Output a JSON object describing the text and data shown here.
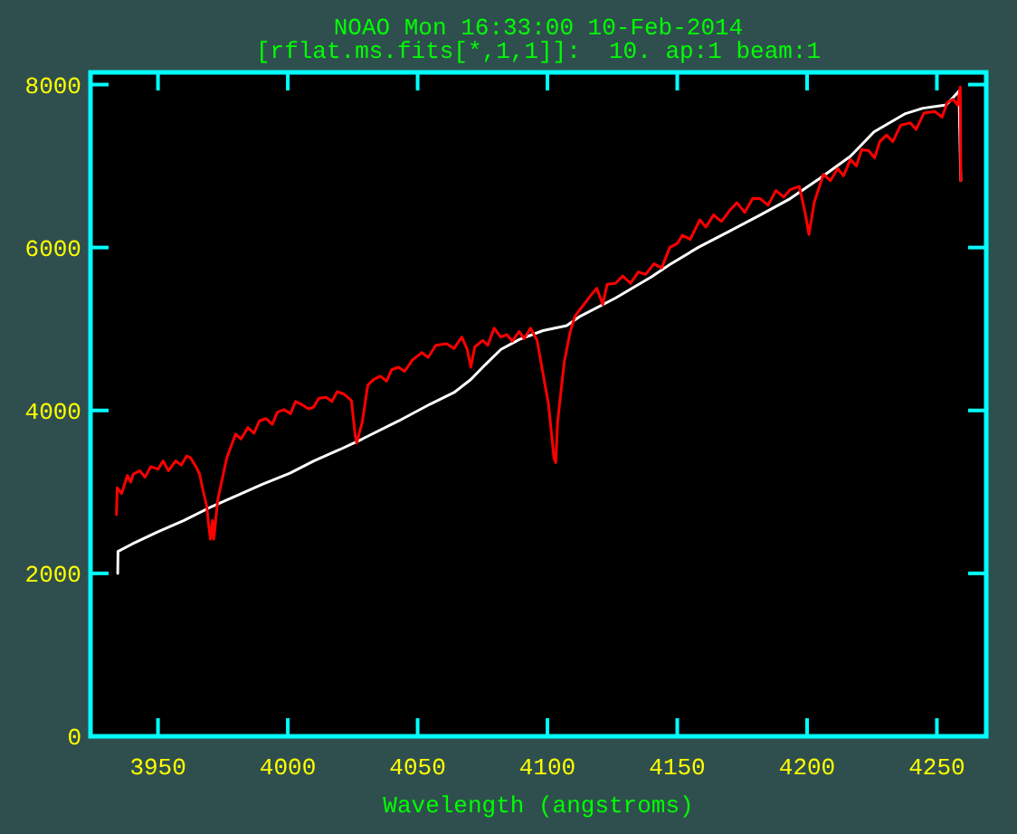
{
  "chart_data": {
    "type": "line",
    "title": "NOAO Mon 16:33:00 10-Feb-2014",
    "subtitle": "[rflat.ms.fits[*,1,1]]:  10. ap:1 beam:1",
    "xlabel": "Wavelength (angstroms)",
    "xlim": [
      3924,
      4269
    ],
    "xticks": [
      3950,
      4000,
      4050,
      4100,
      4150,
      4200,
      4250
    ],
    "ylim": [
      0,
      8150
    ],
    "yticks": [
      0,
      2000,
      4000,
      6000,
      8000
    ],
    "line_style": "solid",
    "series": [
      {
        "color": "#ffffff",
        "x": [
          3934.5,
          3934.6,
          3940,
          3950,
          3960,
          3970.7,
          3980,
          3990,
          4000.8,
          4010,
          4020,
          4028.7,
          4042.6,
          4055,
          4064,
          4070.5,
          4076,
          4082.1,
          4089.1,
          4098.3,
          4107.4,
          4112.3,
          4126.2,
          4140.1,
          4147.1,
          4158,
          4170.1,
          4182,
          4193.5,
          4205,
          4216.7,
          4225.8,
          4237.6,
          4244.6,
          4253.6,
          4258.5,
          4259.2
        ],
        "values": [
          2000,
          2270,
          2360,
          2510,
          2650,
          2820,
          2950,
          3090,
          3230,
          3380,
          3520,
          3650,
          3870,
          4080,
          4220,
          4380,
          4560,
          4750,
          4870,
          4980,
          5040,
          5150,
          5380,
          5640,
          5790,
          6000,
          6200,
          6400,
          6600,
          6850,
          7120,
          7420,
          7640,
          7710,
          7750,
          7920,
          6820
        ]
      },
      {
        "color": "#ff0000",
        "x": [
          3934,
          3934.3,
          3936,
          3938.2,
          3939.5,
          3940.5,
          3943,
          3945,
          3947.2,
          3950,
          3952,
          3954,
          3956.8,
          3959,
          3961,
          3962.5,
          3964.6,
          3966,
          3967.2,
          3968.8,
          3969.5,
          3970.2,
          3971,
          3971.5,
          3973,
          3976.5,
          3979.9,
          3982,
          3984.6,
          3987,
          3989,
          3991.6,
          3994,
          3996,
          3998.5,
          4001,
          4003,
          4005.5,
          4008,
          4009.9,
          4012,
          4014.8,
          4017,
          4019,
          4021.7,
          4024.5,
          4025.9,
          4026.5,
          4028.7,
          4030.8,
          4033,
          4035.7,
          4038,
          4040,
          4042.6,
          4045,
          4048,
          4051.7,
          4054,
          4057,
          4061.2,
          4064,
          4067,
          4069.1,
          4070.5,
          4072,
          4075.1,
          4077,
          4079.5,
          4082,
          4084.4,
          4086.5,
          4089.1,
          4091,
          4093.5,
          4096,
          4098.3,
          4100.4,
          4102.5,
          4103.2,
          4103.9,
          4106.5,
          4108.8,
          4110.5,
          4112.3,
          4116.9,
          4119,
          4121.3,
          4123,
          4126.2,
          4129,
          4132,
          4135,
          4137.8,
          4141,
          4144,
          4147.1,
          4150,
          4152,
          4155,
          4158.7,
          4161,
          4164,
          4167,
          4170.1,
          4173,
          4176,
          4179,
          4181.9,
          4185,
          4188,
          4191,
          4193.5,
          4197,
          4199.3,
          4200.7,
          4202.8,
          4206.3,
          4209,
          4211.8,
          4214,
          4216.7,
          4219,
          4221,
          4223.7,
          4226,
          4228,
          4230.6,
          4233,
          4236,
          4239.7,
          4242,
          4245,
          4249.2,
          4252,
          4254,
          4256.2,
          4258,
          4259,
          4259.2
        ],
        "values": [
          2720,
          3050,
          2980,
          3200,
          3120,
          3220,
          3260,
          3180,
          3310,
          3280,
          3380,
          3260,
          3380,
          3330,
          3440,
          3420,
          3310,
          3220,
          3040,
          2820,
          2600,
          2420,
          2650,
          2420,
          2900,
          3420,
          3710,
          3650,
          3790,
          3720,
          3870,
          3900,
          3830,
          3980,
          4010,
          3960,
          4110,
          4070,
          4020,
          4040,
          4150,
          4160,
          4110,
          4230,
          4200,
          4120,
          3710,
          3600,
          3860,
          4310,
          4380,
          4420,
          4360,
          4500,
          4530,
          4480,
          4620,
          4710,
          4650,
          4800,
          4820,
          4760,
          4900,
          4750,
          4530,
          4780,
          4860,
          4800,
          5010,
          4900,
          4930,
          4850,
          4970,
          4880,
          5010,
          4860,
          4450,
          4080,
          3420,
          3360,
          3860,
          4600,
          4970,
          5150,
          5230,
          5420,
          5500,
          5300,
          5550,
          5560,
          5650,
          5560,
          5700,
          5670,
          5800,
          5750,
          6000,
          6050,
          6150,
          6100,
          6340,
          6250,
          6400,
          6320,
          6450,
          6550,
          6430,
          6600,
          6600,
          6520,
          6700,
          6620,
          6710,
          6750,
          6420,
          6160,
          6560,
          6900,
          6820,
          6970,
          6880,
          7080,
          7000,
          7200,
          7190,
          7100,
          7300,
          7380,
          7300,
          7500,
          7530,
          7450,
          7650,
          7670,
          7600,
          7780,
          7820,
          7750,
          7970,
          6820
        ]
      }
    ]
  }
}
